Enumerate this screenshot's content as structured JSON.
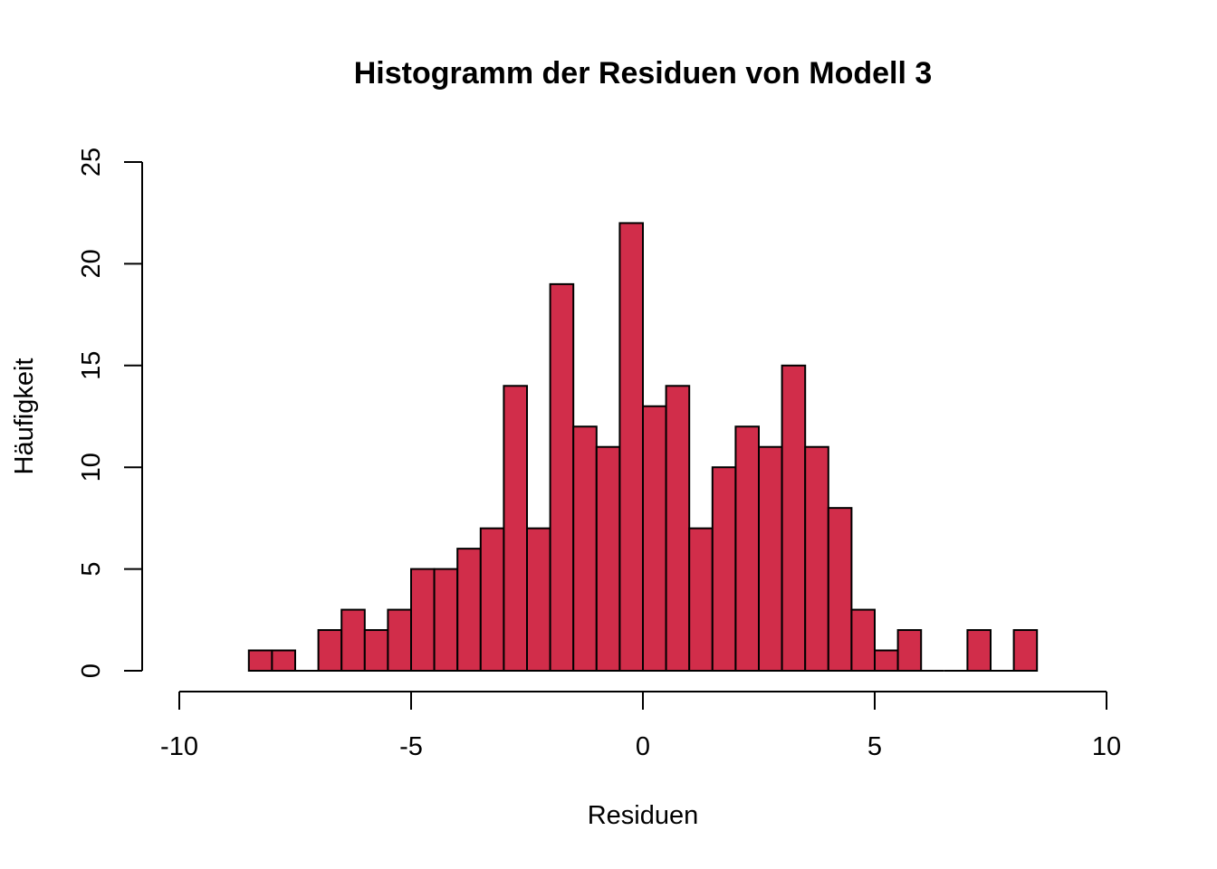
{
  "chart_data": {
    "type": "bar",
    "title": "Histogramm der Residuen von Modell 3",
    "xlabel": "Residuen",
    "ylabel": "Häufigkeit",
    "xlim": [
      -10,
      10
    ],
    "ylim": [
      0,
      25
    ],
    "x_ticks": [
      -10,
      -5,
      0,
      5,
      10
    ],
    "x_tick_labels": [
      "-10",
      "-5",
      "0",
      "5",
      "10"
    ],
    "y_ticks": [
      0,
      5,
      10,
      15,
      20,
      25
    ],
    "y_tick_labels": [
      "0",
      "5",
      "10",
      "15",
      "20",
      "25"
    ],
    "bar_color": "#d12d4a",
    "grid": false,
    "bin_width": 0.5,
    "bins": [
      {
        "start": -8.5,
        "end": -8.0,
        "count": 1
      },
      {
        "start": -8.0,
        "end": -7.5,
        "count": 1
      },
      {
        "start": -7.5,
        "end": -7.0,
        "count": 0
      },
      {
        "start": -7.0,
        "end": -6.5,
        "count": 2
      },
      {
        "start": -6.5,
        "end": -6.0,
        "count": 3
      },
      {
        "start": -6.0,
        "end": -5.5,
        "count": 2
      },
      {
        "start": -5.5,
        "end": -5.0,
        "count": 3
      },
      {
        "start": -5.0,
        "end": -4.5,
        "count": 5
      },
      {
        "start": -4.5,
        "end": -4.0,
        "count": 5
      },
      {
        "start": -4.0,
        "end": -3.5,
        "count": 6
      },
      {
        "start": -3.5,
        "end": -3.0,
        "count": 7
      },
      {
        "start": -3.0,
        "end": -2.5,
        "count": 14
      },
      {
        "start": -2.5,
        "end": -2.0,
        "count": 7
      },
      {
        "start": -2.0,
        "end": -1.5,
        "count": 19
      },
      {
        "start": -1.5,
        "end": -1.0,
        "count": 12
      },
      {
        "start": -1.0,
        "end": -0.5,
        "count": 11
      },
      {
        "start": -0.5,
        "end": 0.0,
        "count": 22
      },
      {
        "start": 0.0,
        "end": 0.5,
        "count": 13
      },
      {
        "start": 0.5,
        "end": 1.0,
        "count": 14
      },
      {
        "start": 1.0,
        "end": 1.5,
        "count": 7
      },
      {
        "start": 1.5,
        "end": 2.0,
        "count": 10
      },
      {
        "start": 2.0,
        "end": 2.5,
        "count": 12
      },
      {
        "start": 2.5,
        "end": 3.0,
        "count": 11
      },
      {
        "start": 3.0,
        "end": 3.5,
        "count": 15
      },
      {
        "start": 3.5,
        "end": 4.0,
        "count": 11
      },
      {
        "start": 4.0,
        "end": 4.5,
        "count": 8
      },
      {
        "start": 4.5,
        "end": 5.0,
        "count": 3
      },
      {
        "start": 5.0,
        "end": 5.5,
        "count": 1
      },
      {
        "start": 5.5,
        "end": 6.0,
        "count": 2
      },
      {
        "start": 6.0,
        "end": 6.5,
        "count": 0
      },
      {
        "start": 6.5,
        "end": 7.0,
        "count": 0
      },
      {
        "start": 7.0,
        "end": 7.5,
        "count": 2
      },
      {
        "start": 7.5,
        "end": 8.0,
        "count": 0
      },
      {
        "start": 8.0,
        "end": 8.5,
        "count": 2
      }
    ]
  }
}
